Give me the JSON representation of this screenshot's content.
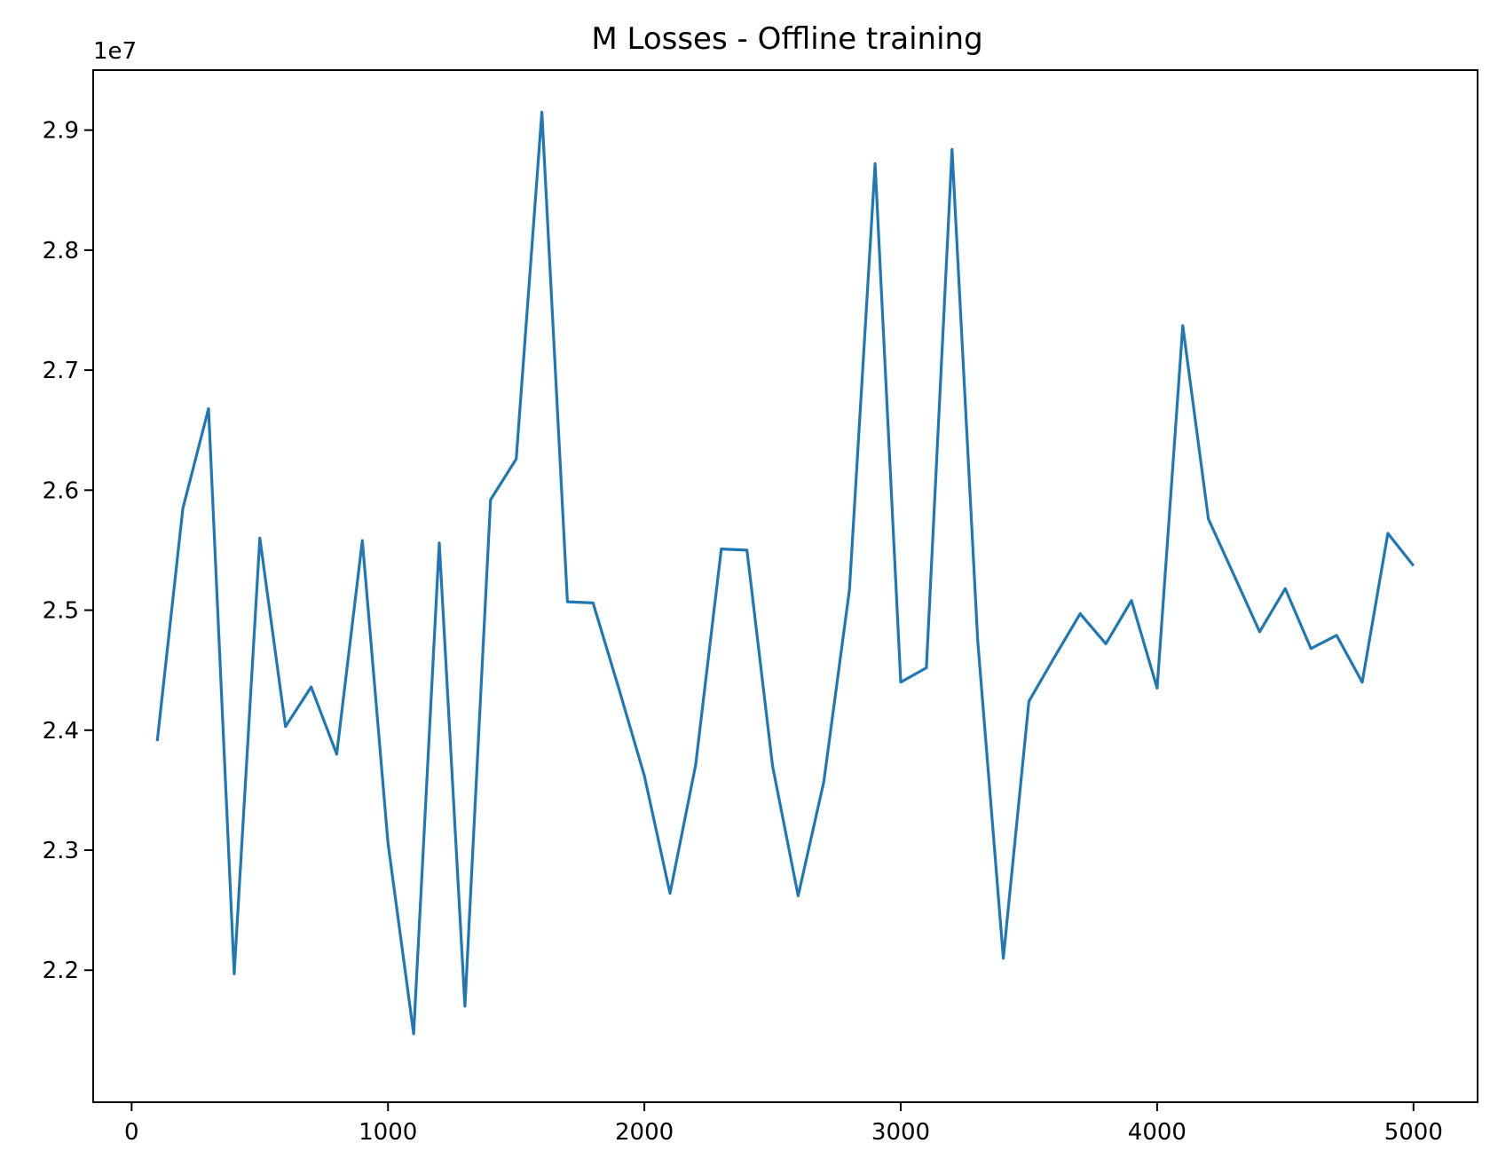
{
  "chart_data": {
    "type": "line",
    "title": "M Losses - Offline training",
    "xlabel": "",
    "ylabel": "",
    "y_offset_label": "1e7",
    "xlim": [
      -150,
      5250
    ],
    "ylim": [
      2.09,
      2.95
    ],
    "xticks": [
      0,
      1000,
      2000,
      3000,
      4000,
      5000
    ],
    "yticks": [
      2.2,
      2.3,
      2.4,
      2.5,
      2.6,
      2.7,
      2.8,
      2.9
    ],
    "ytick_labels": [
      "2.2",
      "2.3",
      "2.4",
      "2.5",
      "2.6",
      "2.7",
      "2.8",
      "2.9"
    ],
    "grid": false,
    "series": [
      {
        "color": "#1f77b4",
        "x": [
          100,
          200,
          300,
          400,
          500,
          600,
          700,
          800,
          900,
          1000,
          1100,
          1200,
          1300,
          1400,
          1500,
          1600,
          1700,
          1800,
          1900,
          2000,
          2100,
          2200,
          2300,
          2400,
          2500,
          2600,
          2700,
          2800,
          2900,
          3000,
          3100,
          3200,
          3300,
          3400,
          3500,
          3600,
          3700,
          3800,
          3900,
          4000,
          4100,
          4200,
          4300,
          4400,
          4500,
          4600,
          4700,
          4800,
          4900,
          5000
        ],
        "y": [
          2.391,
          2.585,
          2.668,
          2.197,
          2.56,
          2.403,
          2.436,
          2.38,
          2.558,
          2.306,
          2.147,
          2.556,
          2.17,
          2.592,
          2.626,
          2.915,
          2.507,
          2.506,
          2.435,
          2.362,
          2.264,
          2.371,
          2.551,
          2.55,
          2.37,
          2.262,
          2.357,
          2.517,
          2.872,
          2.44,
          2.452,
          2.884,
          2.475,
          2.21,
          2.424,
          2.461,
          2.497,
          2.472,
          2.508,
          2.435,
          2.737,
          2.576,
          2.529,
          2.482,
          2.518,
          2.468,
          2.479,
          2.44,
          2.564,
          2.537
        ]
      }
    ]
  }
}
